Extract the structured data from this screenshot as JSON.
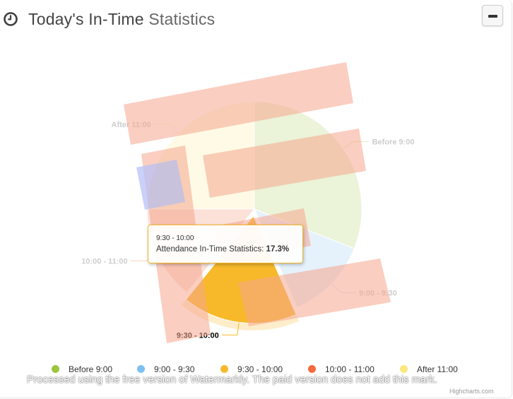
{
  "panel": {
    "title_main": "Today's In-Time",
    "title_light": "Statistics",
    "collapse_icon": "minus-icon",
    "header_icon": "clock-icon"
  },
  "chart_data": {
    "type": "pie",
    "series": [
      {
        "name": "Attendance In-Time Statistics",
        "slices": [
          {
            "name": "Before 9:00",
            "value": 31.0,
            "color": "#9bc53d"
          },
          {
            "name": "9:00 - 9:30",
            "value": 12.5,
            "color": "#7cc0ef"
          },
          {
            "name": "9:30 - 10:00",
            "value": 17.3,
            "color": "#f7b92a"
          },
          {
            "name": "10:00 - 11:00",
            "value": 14.2,
            "color": "#f26a3d"
          },
          {
            "name": "After 11:00",
            "value": 25.0,
            "color": "#fbe87d"
          }
        ]
      }
    ],
    "selected": "9:30 - 10:00",
    "legend_position": "bottom"
  },
  "tooltip": {
    "header": "9:30 - 10:00",
    "series_name": "Attendance In-Time Statistics:",
    "value": "17.3%"
  },
  "watermark": {
    "text": "Processed using the free version of Watermarkly. The paid version does not add this mark."
  },
  "credits": "Highcharts.com"
}
